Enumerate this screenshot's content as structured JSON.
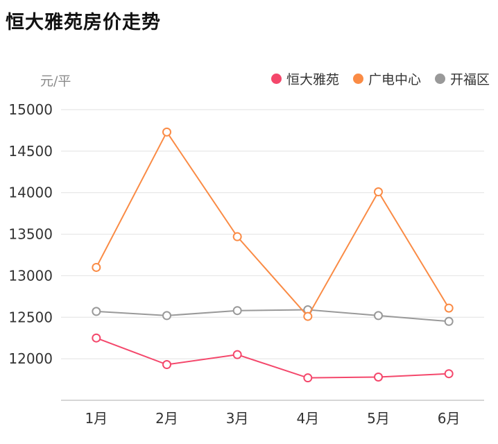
{
  "title": "恒大雅苑房价走势",
  "unit_label": "元/平",
  "legend": [
    {
      "label": "恒大雅苑",
      "color": "#f4476b"
    },
    {
      "label": "广电中心",
      "color": "#fa8b45"
    },
    {
      "label": "开福区",
      "color": "#999999"
    }
  ],
  "chart_data": {
    "type": "line",
    "title": "恒大雅苑房价走势",
    "ylabel": "元/平",
    "categories": [
      "1月",
      "2月",
      "3月",
      "4月",
      "5月",
      "6月"
    ],
    "series": [
      {
        "name": "恒大雅苑",
        "color": "#f4476b",
        "values": [
          12250,
          11930,
          12050,
          11770,
          11780,
          11820
        ]
      },
      {
        "name": "广电中心",
        "color": "#fa8b45",
        "values": [
          13100,
          14730,
          13470,
          12510,
          14010,
          12610
        ]
      },
      {
        "name": "开福区",
        "color": "#999999",
        "values": [
          12570,
          12520,
          12580,
          12590,
          12520,
          12450
        ]
      }
    ],
    "ylim": [
      11500,
      15000
    ],
    "yticks": [
      12000,
      12500,
      13000,
      13500,
      14000,
      14500,
      15000
    ],
    "grid": true,
    "legend_position": "top-right",
    "marker": "hollow-circle",
    "grid_color": "#e2e2e2",
    "axis_color": "#c9c9c9",
    "tick_label_color": "#333333"
  }
}
